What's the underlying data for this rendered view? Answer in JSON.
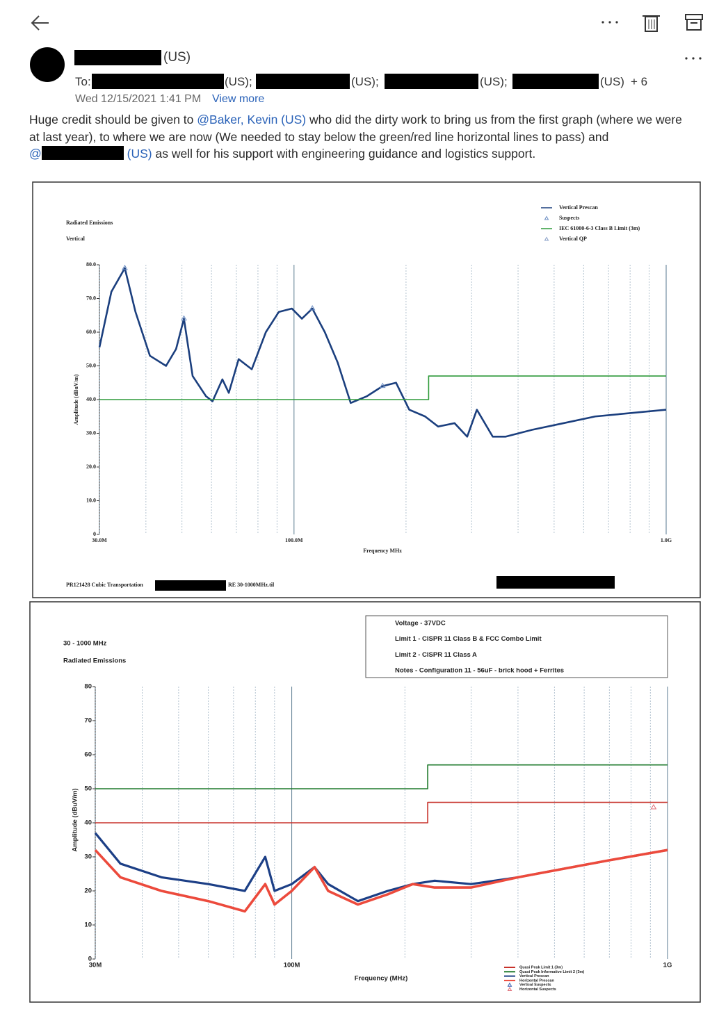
{
  "email": {
    "sender_suffix": "(US)",
    "to_label": "To:",
    "recipients": [
      "(US);",
      "(US);",
      "(US);",
      "(US)"
    ],
    "more": "+ 6",
    "date": "Wed 12/15/2021 1:41 PM",
    "view_more": "View more",
    "body": {
      "p1_start": "Huge credit should be given to ",
      "mention1": "@Baker, Kevin (US)",
      "p1_end": " who did the dirty work to bring us from the first graph (where we were at last year), to where we are now (We needed to stay below the green/red line horizontal lines to pass) and",
      "mention2_at": "@",
      "mention2_suffix": "(US)",
      "p2_end": " as well for his support with engineering guidance and logistics support."
    }
  },
  "chart_data": [
    {
      "type": "line",
      "title": "Radiated Emissions",
      "subtitle": "Vertical",
      "x_label": "Frequency MHz",
      "y_label": "Amplitude (dBuV/m)",
      "footer_left": "PR121428 Cubic Transportation",
      "footer_right": "RE 30-1000MHz.til",
      "x_scale": "log",
      "grid": true,
      "xlim": [
        30,
        1000
      ],
      "ylim": [
        0,
        80
      ],
      "xticks": [
        {
          "value": 30,
          "label": "30.0M"
        },
        {
          "value": 100,
          "label": "100.0M"
        },
        {
          "value": 1000,
          "label": "1.0G"
        }
      ],
      "yticks": [
        0,
        {
          "value": 10,
          "label": "10.0"
        },
        {
          "value": 20,
          "label": "20.0"
        },
        {
          "value": 30,
          "label": "30.0"
        },
        {
          "value": 40,
          "label": "40.0"
        },
        {
          "value": 50,
          "label": "50.0"
        },
        {
          "value": 60,
          "label": "60.0"
        },
        {
          "value": 70,
          "label": "70.0"
        },
        {
          "value": 80,
          "label": "80.0"
        }
      ],
      "series": [
        {
          "name": "Vertical Prescan",
          "kind": "line",
          "color": "#1b3f7e",
          "x": [
            30,
            32.3,
            35.1,
            37.5,
            41,
            45.3,
            48.2,
            50.6,
            53.4,
            58,
            60.4,
            64.2,
            66.8,
            71,
            77,
            84,
            91,
            98.7,
            105,
            112,
            121,
            131,
            142,
            157,
            173,
            188,
            204,
            225,
            244,
            270,
            292,
            310,
            342,
            370,
            435,
            530,
            645,
            1000
          ],
          "values": [
            55.5,
            72,
            79,
            66,
            53,
            50,
            55,
            64,
            47,
            41,
            39.5,
            46,
            42,
            52,
            49,
            60,
            66,
            67,
            64,
            67,
            60,
            51,
            39,
            41,
            44,
            45,
            37,
            35,
            32,
            33,
            29,
            37,
            29,
            29,
            31,
            33,
            35,
            37
          ]
        },
        {
          "name": "Suspects",
          "kind": "scatter",
          "color": "#6d8fc4",
          "x": [
            35.1,
            50.6,
            112,
            173
          ],
          "values": [
            79,
            64,
            67,
            44
          ]
        },
        {
          "name": "IEC 61000-6-3 Class B Limit (3m)",
          "kind": "line",
          "color": "#2e9a3a",
          "x": [
            30,
            230,
            230,
            1000
          ],
          "values": [
            40,
            40,
            47,
            47
          ]
        },
        {
          "name": "Vertical QP",
          "kind": "scatter",
          "color": "#8aa0c8",
          "x": [],
          "values": []
        }
      ]
    },
    {
      "type": "line",
      "title": "30 - 1000 MHz",
      "subtitle": "Radiated Emissions",
      "x_label": "Frequency (MHz)",
      "y_label": "Amplitude (dBuV/m)",
      "notes": [
        "Voltage - 37VDC",
        "Limit 1 - CISPR 11 Class B & FCC Combo Limit",
        "Limit 2 - CISPR 11 Class A",
        "Notes - Configuration 11 - 56uF - brick hood + Ferrites"
      ],
      "x_scale": "log",
      "grid": true,
      "xlim": [
        30,
        1000
      ],
      "ylim": [
        0,
        80
      ],
      "xticks": [
        {
          "value": 30,
          "label": "30M"
        },
        {
          "value": 100,
          "label": "100M"
        },
        {
          "value": 1000,
          "label": "1G"
        }
      ],
      "yticks": [
        0,
        10,
        20,
        30,
        40,
        50,
        60,
        70,
        80
      ],
      "series": [
        {
          "name": "Quasi Peak Limit 1 (3m)",
          "kind": "line",
          "color": "#c8322b",
          "x": [
            30,
            230,
            230,
            1000
          ],
          "values": [
            40,
            40,
            46,
            46
          ]
        },
        {
          "name": "Quasi Peak Informative Limit 2 (3m)",
          "kind": "line",
          "color": "#1f7a2c",
          "x": [
            30,
            230,
            230,
            1000
          ],
          "values": [
            50,
            50,
            57,
            57
          ]
        },
        {
          "name": "Vertical Prescan",
          "kind": "line",
          "color": "#1c3f86",
          "x": [
            30,
            35,
            45,
            60,
            75,
            85,
            90,
            100,
            115,
            125,
            150,
            180,
            210,
            240,
            300,
            400,
            500,
            700,
            1000
          ],
          "values": [
            37,
            28,
            24,
            22,
            20,
            30,
            20,
            22,
            27,
            22,
            17,
            20,
            22,
            23,
            22,
            24,
            26,
            29,
            32
          ]
        },
        {
          "name": "Horizontal Prescan",
          "kind": "line",
          "color": "#ec4a3c",
          "x": [
            30,
            35,
            45,
            60,
            75,
            85,
            90,
            100,
            115,
            125,
            150,
            180,
            210,
            240,
            300,
            400,
            500,
            700,
            1000
          ],
          "values": [
            32,
            24,
            20,
            17,
            14,
            22,
            16,
            20,
            27,
            20,
            16,
            19,
            22,
            21,
            21,
            24,
            26,
            29,
            32
          ]
        },
        {
          "name": "Vertical Suspects",
          "kind": "scatter",
          "color": "#3a5fb0",
          "x": [],
          "values": []
        },
        {
          "name": "Horizontal Suspects",
          "kind": "scatter",
          "color": "#e0707a",
          "x": [
            918
          ],
          "values": [
            44.5
          ]
        }
      ]
    }
  ]
}
